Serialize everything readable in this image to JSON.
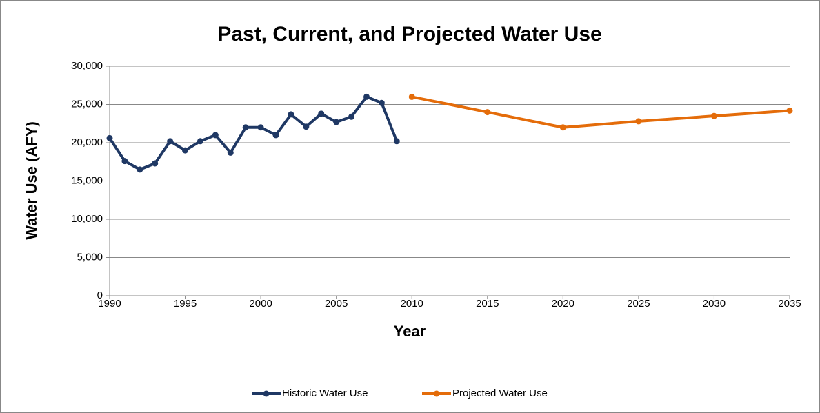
{
  "chart_data": {
    "type": "line",
    "title": "Past, Current, and Projected Water Use",
    "x_label": "Year",
    "y_label": "Water Use (AFY)",
    "xlim": [
      1990,
      2035
    ],
    "xticks": [
      1990,
      1995,
      2000,
      2005,
      2010,
      2015,
      2020,
      2025,
      2030,
      2035
    ],
    "ylim": [
      0,
      30000
    ],
    "yticks": [
      0,
      {
        "value": 5000,
        "label": "5,000"
      },
      {
        "value": 10000,
        "label": "10,000"
      },
      {
        "value": 15000,
        "label": "15,000"
      },
      {
        "value": 20000,
        "label": "20,000"
      },
      {
        "value": 25000,
        "label": "25,000"
      },
      {
        "value": 30000,
        "label": "30,000"
      }
    ],
    "grid": true,
    "legend": "bottom",
    "series": [
      {
        "name": "Historic Water Use",
        "color": "#1f3864",
        "x": [
          1990,
          1991,
          1992,
          1993,
          1994,
          1995,
          1996,
          1997,
          1998,
          1999,
          2000,
          2001,
          2002,
          2003,
          2004,
          2005,
          2006,
          2007,
          2008,
          2009
        ],
        "values": [
          20600,
          17600,
          16500,
          17300,
          20200,
          19000,
          20200,
          21000,
          18700,
          22000,
          22000,
          21000,
          23700,
          22100,
          23800,
          22700,
          23400,
          26000,
          25200,
          20200
        ]
      },
      {
        "name": "Projected Water Use",
        "color": "#e46c0a",
        "x": [
          2010,
          2015,
          2020,
          2025,
          2030,
          2035
        ],
        "values": [
          26000,
          24000,
          22000,
          22800,
          23500,
          24200
        ]
      }
    ]
  }
}
